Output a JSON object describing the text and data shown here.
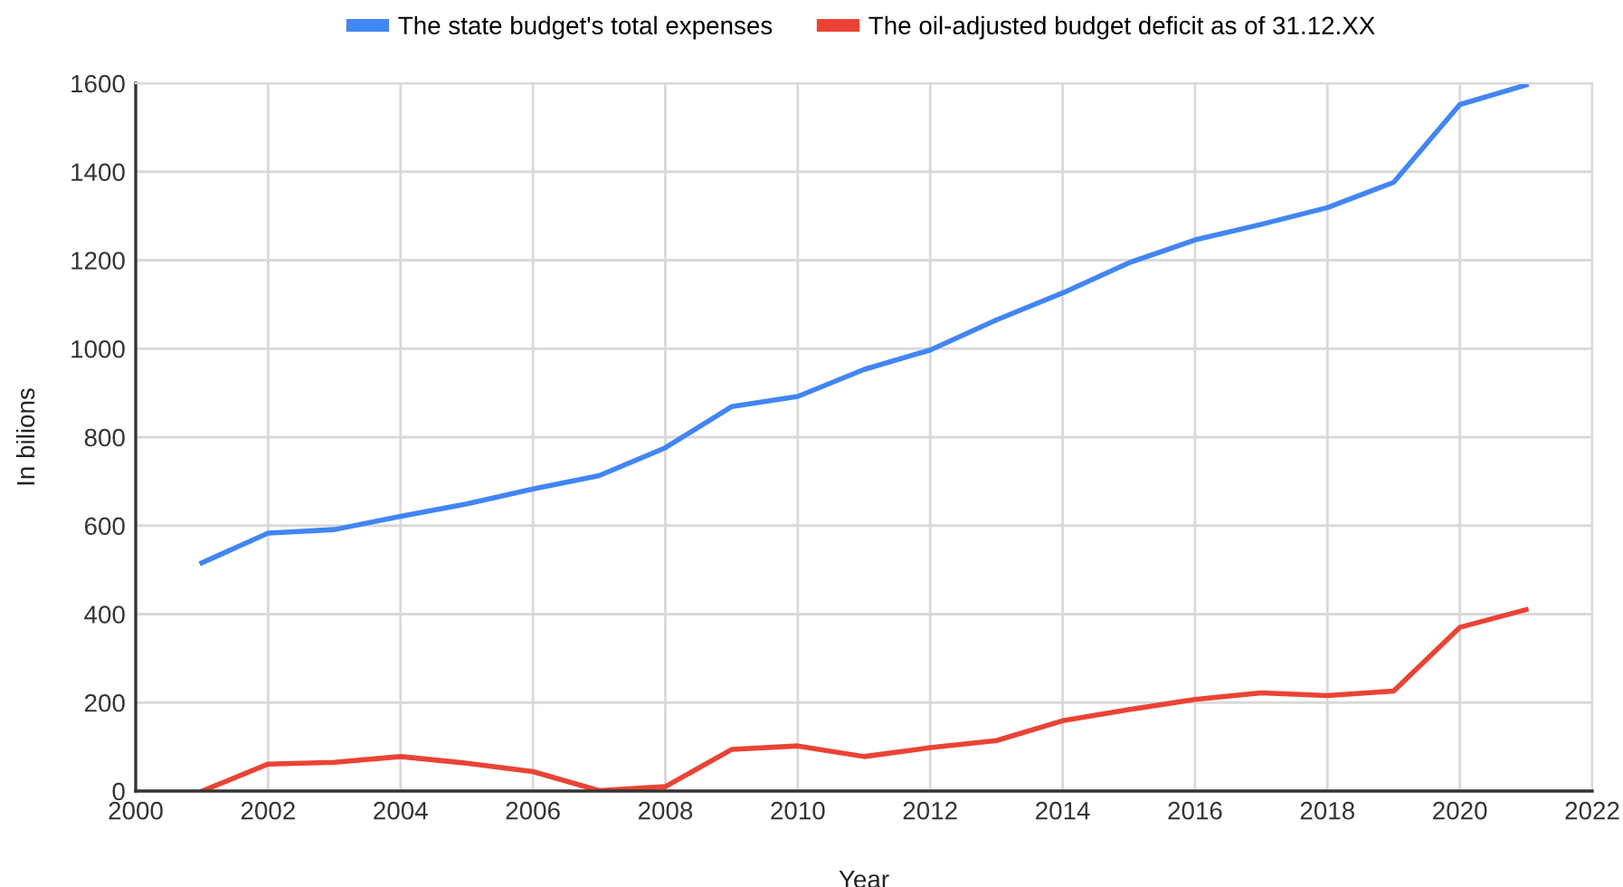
{
  "chart_data": {
    "type": "line",
    "xlabel": "Year",
    "ylabel": "In bilions",
    "x": [
      2001,
      2002,
      2003,
      2004,
      2005,
      2006,
      2007,
      2008,
      2009,
      2010,
      2011,
      2012,
      2013,
      2014,
      2015,
      2016,
      2017,
      2018,
      2019,
      2020,
      2021
    ],
    "series": [
      {
        "name": "The state budget's total expenses",
        "color": "#4285f4",
        "values": [
          516,
          583,
          591,
          621,
          649,
          683,
          713,
          776,
          869,
          892,
          953,
          997,
          1065,
          1126,
          1194,
          1246,
          1281,
          1319,
          1376,
          1552,
          1596
        ]
      },
      {
        "name": "The oil-adjusted budget deficit as of 31.12.XX",
        "color": "#ea4335",
        "values": [
          0,
          61,
          65,
          78,
          63,
          44,
          1,
          10,
          94,
          102,
          78,
          98,
          114,
          159,
          184,
          207,
          222,
          216,
          226,
          370,
          410
        ]
      }
    ],
    "xlim": [
      2000,
      2022
    ],
    "xticks": [
      2000,
      2002,
      2004,
      2006,
      2008,
      2010,
      2012,
      2014,
      2016,
      2018,
      2020,
      2022
    ],
    "ylim": [
      0,
      1600
    ],
    "yticks": [
      0,
      200,
      400,
      600,
      800,
      1000,
      1200,
      1400,
      1600
    ],
    "grid": true,
    "legend": "top",
    "marker": "none",
    "line_style": "solid"
  }
}
